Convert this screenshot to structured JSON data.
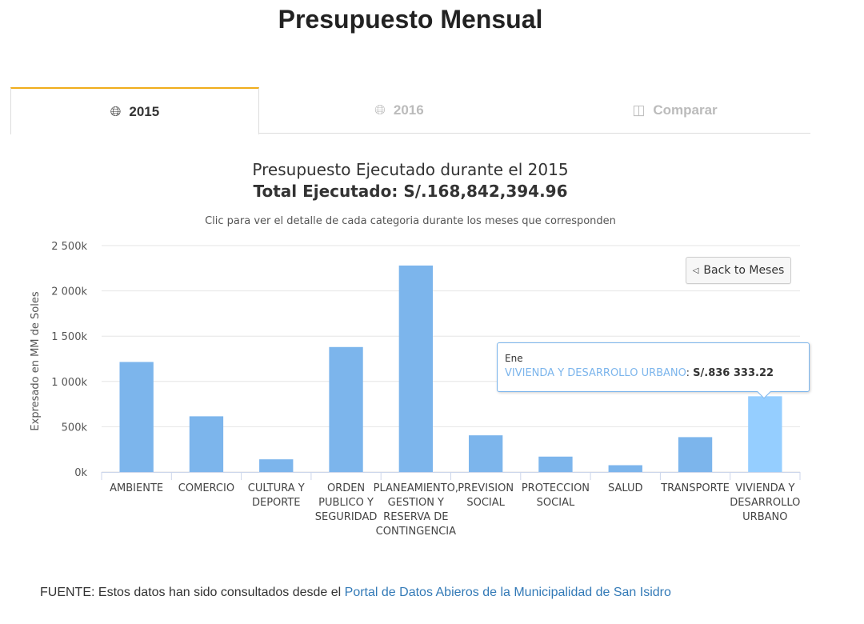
{
  "page": {
    "title": "Presupuesto Mensual"
  },
  "tabs": [
    {
      "label": "2015",
      "icon": "globe-icon",
      "active": true
    },
    {
      "label": "2016",
      "icon": "globe-icon",
      "active": false
    },
    {
      "label": "Comparar",
      "icon": "compare-icon",
      "active": false
    }
  ],
  "chart": {
    "title": "Presupuesto Ejecutado durante el 2015",
    "total_label": "Total Ejecutado",
    "total_value": "S/.168,842,394.96",
    "subtitle": "Clic para ver el detalle de cada categoria durante los meses que corresponden",
    "back_button_label": "Back to Meses",
    "tooltip": {
      "header": "Ene",
      "series": "VIVIENDA Y DESARROLLO URBANO",
      "value": "S/.836 333.22"
    }
  },
  "chart_data": {
    "type": "bar",
    "title": "Presupuesto Ejecutado durante el 2015",
    "ylabel": "Expresado en MM de Soles",
    "xlabel": "",
    "ylim": [
      0,
      2500000
    ],
    "yticks": [
      "0k",
      "500k",
      "1 000k",
      "1 500k",
      "2 000k",
      "2 500k"
    ],
    "grid": true,
    "categories": [
      [
        "AMBIENTE"
      ],
      [
        "COMERCIO"
      ],
      [
        "CULTURA Y",
        "DEPORTE"
      ],
      [
        "ORDEN",
        "PUBLICO Y",
        "SEGURIDAD"
      ],
      [
        "PLANEAMIENTO,",
        "GESTION Y",
        "RESERVA DE",
        "CONTINGENCIA"
      ],
      [
        "PREVISION",
        "SOCIAL"
      ],
      [
        "PROTECCION",
        "SOCIAL"
      ],
      [
        "SALUD"
      ],
      [
        "TRANSPORTE"
      ],
      [
        "VIVIENDA Y",
        "DESARROLLO",
        "URBANO"
      ]
    ],
    "values": [
      1215000,
      615000,
      140000,
      1380000,
      2280000,
      405000,
      170000,
      75000,
      385000,
      836333.22
    ],
    "colors": {
      "bar": "#7cb5ec",
      "bar_hover": "#95ceff",
      "grid": "#e6e6e6",
      "axis": "#ccd6eb"
    },
    "highlighted_index": 9
  },
  "footer": {
    "source_prefix": "FUENTE: Estos datos han sido consultados desde el",
    "source_link": "Portal de Datos Abieros de la Municipalidad de San Isidro"
  }
}
